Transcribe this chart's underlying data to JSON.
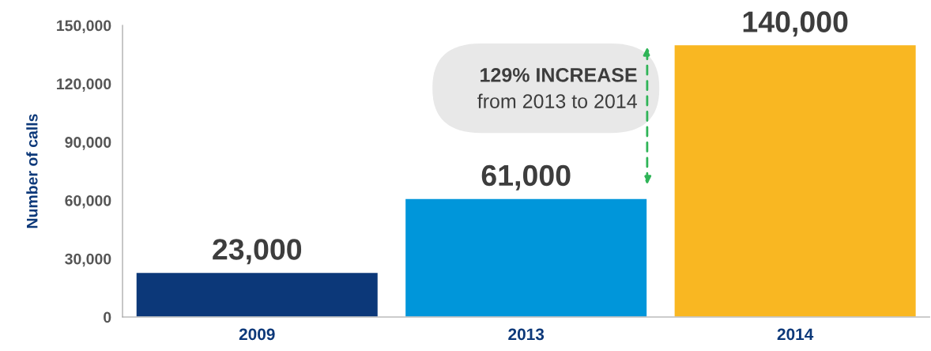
{
  "chart_data": {
    "type": "bar",
    "ylabel": "Number of calls",
    "categories": [
      "2009",
      "2013",
      "2014"
    ],
    "values": [
      23000,
      61000,
      140000
    ],
    "colors": [
      "#0c3879",
      "#0096da",
      "#f9b722"
    ],
    "ylim": [
      0,
      150000
    ],
    "yticks": [
      {
        "value": 0,
        "label": "0"
      },
      {
        "value": 30000,
        "label": "30,000"
      },
      {
        "value": 60000,
        "label": "60,000"
      },
      {
        "value": 90000,
        "label": "90,000"
      },
      {
        "value": 120000,
        "label": "120,000"
      },
      {
        "value": 150000,
        "label": "150,000"
      }
    ],
    "value_labels": [
      "23,000",
      "61,000",
      "140,000"
    ],
    "annotations": [
      "129% INCREASE",
      "from 2013 to 2014"
    ],
    "grid": false,
    "legend": false
  }
}
